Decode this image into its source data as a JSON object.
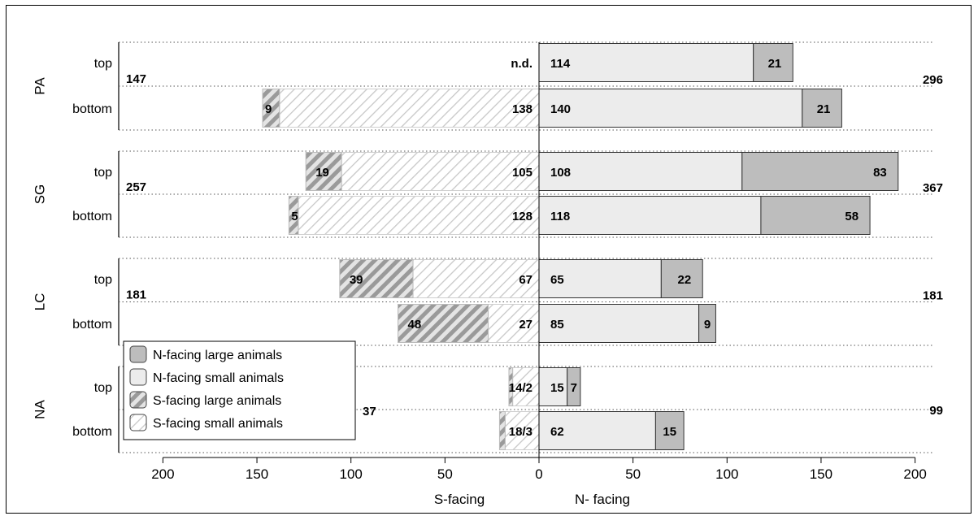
{
  "chart_data": {
    "type": "bar",
    "orientation": "horizontal-diverging",
    "x_axis": {
      "ticks_left": [
        200,
        150,
        100,
        50,
        0
      ],
      "ticks_right": [
        50,
        100,
        150,
        200
      ],
      "label_left": "S-facing",
      "label_right": "N- facing",
      "range": [
        -200,
        200
      ]
    },
    "legend": {
      "placement": "bottom-left",
      "entries": [
        {
          "label": "N-facing large animals",
          "color": "#bdbdbd",
          "pattern": "solid"
        },
        {
          "label": "N-facing small animals",
          "color": "#ececec",
          "pattern": "solid"
        },
        {
          "label": "S-facing large animals",
          "color": "#9e9e9e",
          "pattern": "hatch"
        },
        {
          "label": "S-facing small animals",
          "color": "#d2d2d2",
          "pattern": "hatch"
        }
      ]
    },
    "groups": [
      {
        "name": "PA",
        "total_s": "147",
        "total_n": "296",
        "rows": [
          {
            "label": "top",
            "s_small": null,
            "s_large": null,
            "s_label": "n.d.",
            "n_small": 114,
            "n_large": 21,
            "n_small_label": "114",
            "n_large_label": "21"
          },
          {
            "label": "bottom",
            "s_small": 138,
            "s_large": 9,
            "s_small_label": "138",
            "s_large_label": "9",
            "n_small": 140,
            "n_large": 21,
            "n_small_label": "140",
            "n_large_label": "21"
          }
        ]
      },
      {
        "name": "SG",
        "total_s": "257",
        "total_n": "367",
        "rows": [
          {
            "label": "top",
            "s_small": 105,
            "s_large": 19,
            "s_small_label": "105",
            "s_large_label": "19",
            "n_small": 108,
            "n_large": 83,
            "n_small_label": "108",
            "n_large_label": "83"
          },
          {
            "label": "bottom",
            "s_small": 128,
            "s_large": 5,
            "s_small_label": "128",
            "s_large_label": "5",
            "n_small": 118,
            "n_large": 58,
            "n_small_label": "118",
            "n_large_label": "58"
          }
        ]
      },
      {
        "name": "LC",
        "total_s": "181",
        "total_n": "181",
        "rows": [
          {
            "label": "top",
            "s_small": 67,
            "s_large": 39,
            "s_small_label": "67",
            "s_large_label": "39",
            "n_small": 65,
            "n_large": 22,
            "n_small_label": "65",
            "n_large_label": "22"
          },
          {
            "label": "bottom",
            "s_small": 27,
            "s_large": 48,
            "s_small_label": "27",
            "s_large_label": "48",
            "n_small": 85,
            "n_large": 9,
            "n_small_label": "85",
            "n_large_label": "9"
          }
        ]
      },
      {
        "name": "NA",
        "total_s": "37",
        "total_n": "99",
        "rows": [
          {
            "label": "top",
            "s_small": 14,
            "s_large": 2,
            "s_label": "14/2",
            "n_small": 15,
            "n_large": 7,
            "n_small_label": "15",
            "n_large_label": "7"
          },
          {
            "label": "bottom",
            "s_small": 18,
            "s_large": 3,
            "s_label": "18/3",
            "n_small": 62,
            "n_large": 15,
            "n_small_label": "62",
            "n_large_label": "15"
          }
        ]
      }
    ]
  }
}
